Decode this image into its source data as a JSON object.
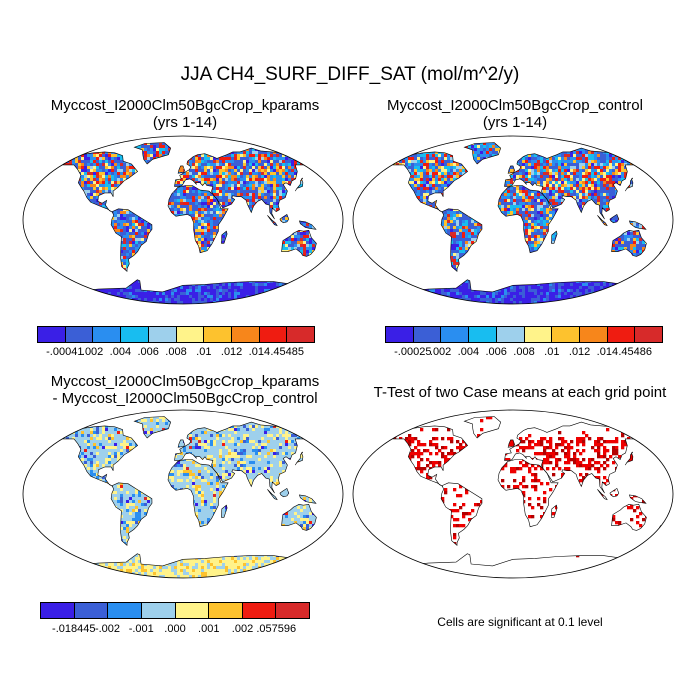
{
  "title": "JJA CH4_SURF_DIFF_SAT (mol/m^2/y)",
  "panels": [
    {
      "title_line1": "Myccost_I2000Clm50BgcCrop_kparams",
      "title_line2": "(yrs 1-14)",
      "colorbar": {
        "colors": [
          "#3a1fe6",
          "#3b5fd6",
          "#2a8ef0",
          "#18bdf0",
          "#9ed0ec",
          "#fff38a",
          "#fdc22e",
          "#f7861b",
          "#ef1c11",
          "#d72a2a"
        ],
        "labels": [
          "-.00041",
          ".002",
          ".004",
          ".006",
          ".008",
          ".01",
          ".012",
          ".014",
          ".45485"
        ]
      }
    },
    {
      "title_line1": "Myccost_I2000Clm50BgcCrop_control",
      "title_line2": "(yrs 1-14)",
      "colorbar": {
        "colors": [
          "#3a1fe6",
          "#3b5fd6",
          "#2a8ef0",
          "#18bdf0",
          "#9ed0ec",
          "#fff38a",
          "#fdc22e",
          "#f7861b",
          "#ef1c11",
          "#d72a2a"
        ],
        "labels": [
          "-.00025",
          ".002",
          ".004",
          ".006",
          ".008",
          ".01",
          ".012",
          ".014",
          ".45486"
        ]
      }
    },
    {
      "title_line1": "Myccost_I2000Clm50BgcCrop_kparams",
      "title_line2": "- Myccost_I2000Clm50BgcCrop_control",
      "colorbar": {
        "colors": [
          "#3a1fe6",
          "#3b5fd6",
          "#2a8ef0",
          "#9ed0ec",
          "#fff38a",
          "#fdc22e",
          "#ef1c11",
          "#d72a2a"
        ],
        "labels": [
          "-.018445",
          "-.002",
          "-.001",
          ".000",
          ".001",
          ".002",
          ".057596"
        ]
      }
    },
    {
      "title_line1": "T-Test of two Case means at each grid point",
      "note": "Cells are significant at 0.1 level"
    }
  ]
}
